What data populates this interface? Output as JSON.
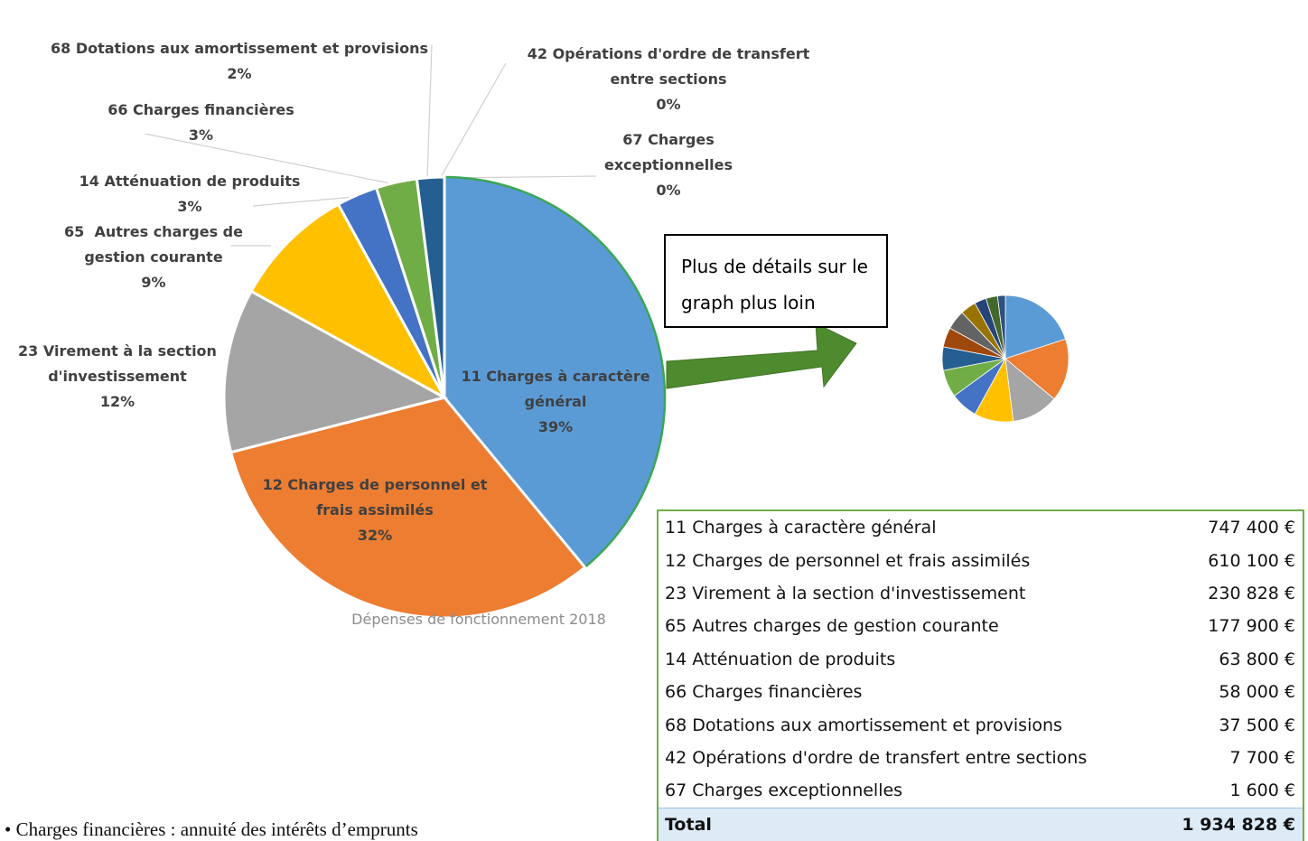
{
  "chart_data": {
    "type": "pie",
    "title": "Dépenses de fonctionnement 2018",
    "categories": [
      "11 Charges à caractère général",
      "12 Charges de personnel et frais assimilés",
      "23 Virement à la section d'investissement",
      "65  Autres charges de gestion courante",
      "14 Atténuation de produits",
      "66 Charges financières",
      "68 Dotations aux amortissement et provisions",
      "42 Opérations d'ordre de transfert entre sections",
      "67 Charges exceptionnelles"
    ],
    "values": [
      39,
      32,
      12,
      9,
      3,
      3,
      2,
      0,
      0
    ],
    "value_labels": [
      "39%",
      "32%",
      "12%",
      "9%",
      "3%",
      "3%",
      "2%",
      "0%",
      "0%"
    ],
    "colors": [
      "#5b9bd5",
      "#ed7d31",
      "#a5a5a5",
      "#ffc000",
      "#4472c4",
      "#70ad47",
      "#255e91",
      "#9e480e",
      "#d9362b"
    ]
  },
  "callout": {
    "text": "Plus de détails sur le graph plus loin"
  },
  "table": {
    "rows": [
      [
        "11 Charges à caractère général",
        "747 400 €"
      ],
      [
        "12 Charges de personnel et frais assimilés",
        "610 100 €"
      ],
      [
        "23 Virement à la section d'investissement",
        "230 828 €"
      ],
      [
        "65  Autres charges de gestion courante",
        "177 900 €"
      ],
      [
        "14 Atténuation de produits",
        "63 800 €"
      ],
      [
        "66 Charges financières",
        "58 000 €"
      ],
      [
        "68 Dotations aux amortissement et provisions",
        "37 500 €"
      ],
      [
        "42 Opérations d'ordre de transfert entre sections",
        "7 700 €"
      ],
      [
        "67 Charges exceptionnelles",
        "1 600 €"
      ]
    ],
    "total": [
      "Total",
      "1 934 828 €"
    ]
  },
  "note": "• Charges financières : annuité des intérêts d’emprunts"
}
